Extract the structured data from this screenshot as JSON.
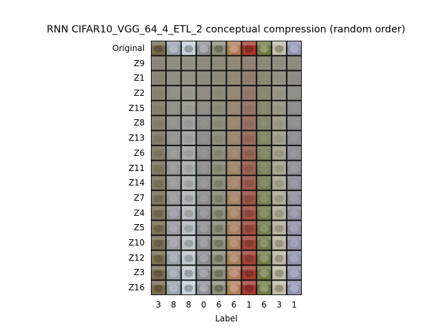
{
  "chart_data": {
    "type": "image-grid",
    "title": "RNN CIFAR10_VGG_64_4_ETL_2 conceptual compression (random order)",
    "xlabel": "Label",
    "ylabel": "",
    "rows": [
      "Original",
      "Z9",
      "Z1",
      "Z2",
      "Z15",
      "Z8",
      "Z13",
      "Z6",
      "Z11",
      "Z14",
      "Z7",
      "Z4",
      "Z5",
      "Z10",
      "Z12",
      "Z3",
      "Z16"
    ],
    "columns": [
      "3",
      "8",
      "8",
      "0",
      "6",
      "6",
      "1",
      "6",
      "3",
      "1"
    ],
    "column_colors": [
      "#7a6a4c",
      "#9aa2ad",
      "#c9d3dc",
      "#8d8f98",
      "#8a9276",
      "#b07a54",
      "#a8352a",
      "#6a7a3c",
      "#c7bfad",
      "#8e93b2"
    ],
    "blur_start_color": "#8d8a7c"
  }
}
